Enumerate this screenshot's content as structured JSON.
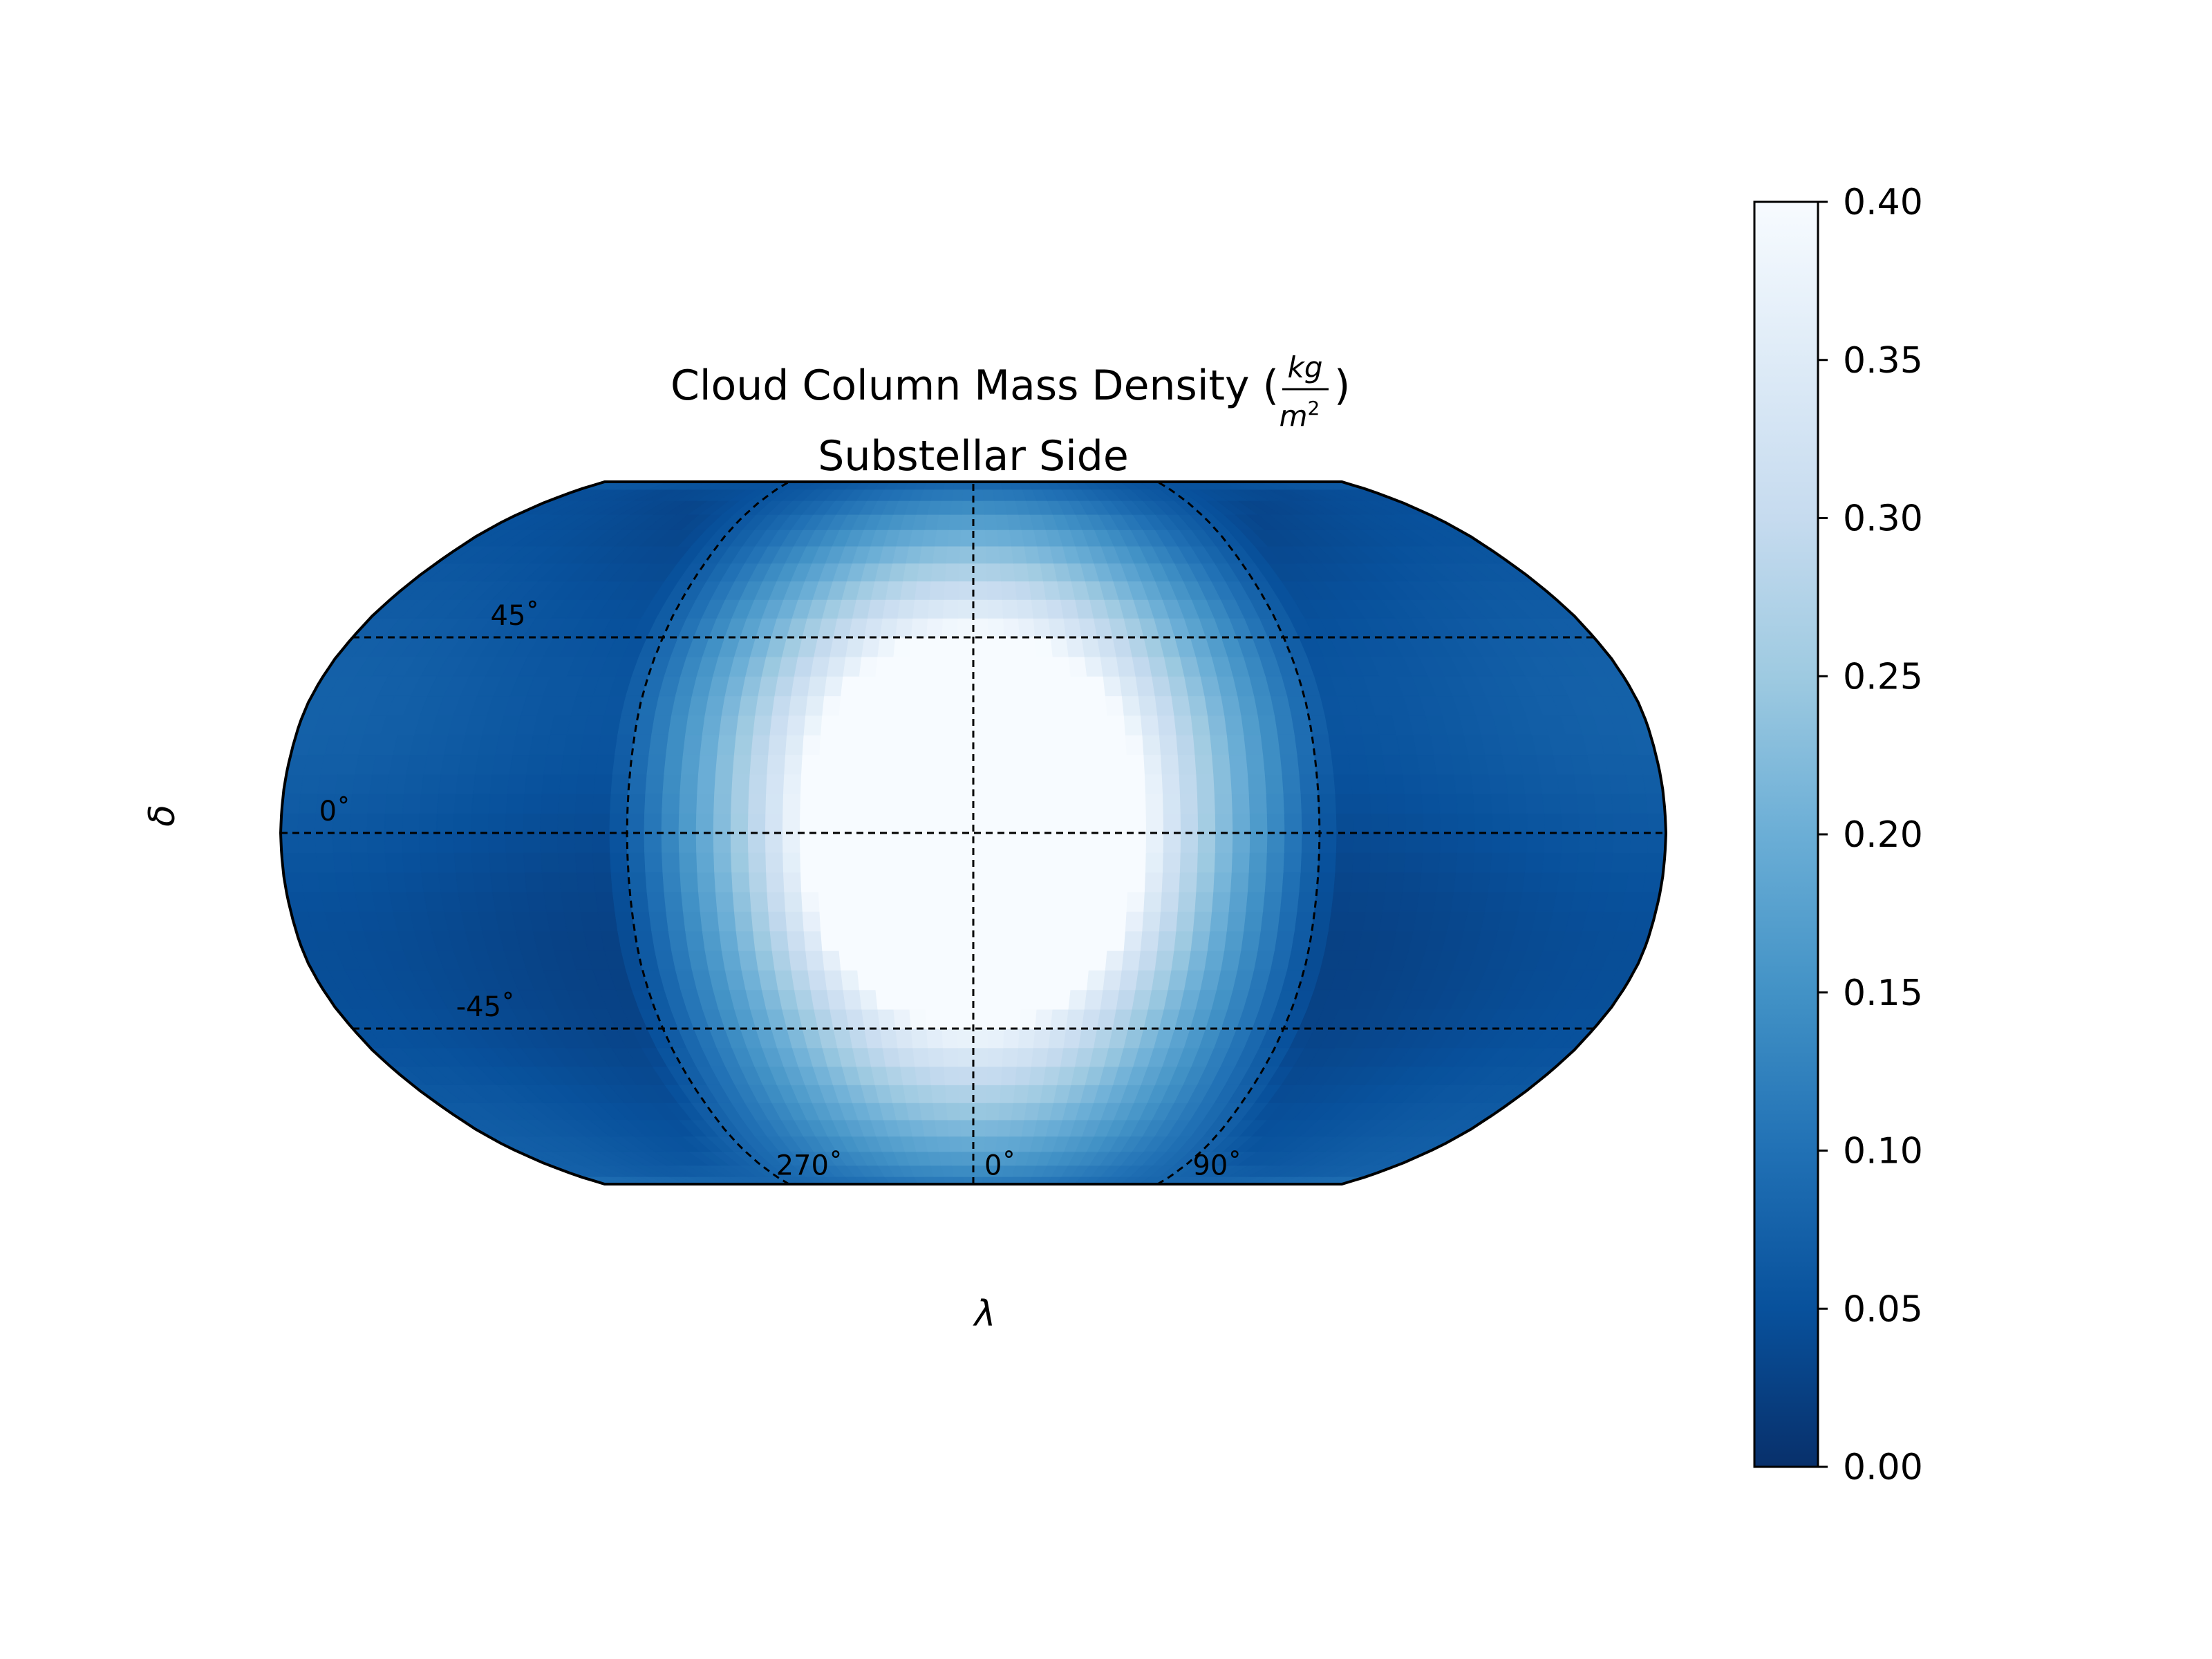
{
  "chart_data": {
    "type": "heatmap",
    "projection": "robinson",
    "view": "substellar",
    "title_main": "Cloud Column Mass Density (",
    "title_unit_num": "kg",
    "title_unit_den": "m",
    "title_unit_den_exp": "2",
    "title_close": ")",
    "subtitle": "Substellar Side",
    "xlabel": "λ",
    "ylabel": "δ",
    "colormap": "Blues_r",
    "colorbar": {
      "min": 0.0,
      "max": 0.4,
      "ticks": [
        "0.00",
        "0.05",
        "0.10",
        "0.15",
        "0.20",
        "0.25",
        "0.30",
        "0.35",
        "0.40"
      ],
      "colors": [
        "#08306b",
        "#08519c",
        "#2171b5",
        "#4292c6",
        "#6baed6",
        "#9ecae1",
        "#c6dbef",
        "#deebf7",
        "#f7fbff"
      ]
    },
    "grid": true,
    "lat_lines": [
      45,
      0,
      -45
    ],
    "lat_labels": [
      "45˚",
      "0˚",
      "-45˚"
    ],
    "lon_lines": [
      270,
      0,
      90
    ],
    "lon_labels": [
      "270˚",
      "0˚",
      "90˚"
    ],
    "field": {
      "lon_range": [
        -180,
        180
      ],
      "lat_range": [
        -90,
        90
      ],
      "substellar_lon": 0,
      "substellar_lat": 0,
      "peak_value": 0.4,
      "plateau_angular_radius_deg": 45,
      "falloff_edge_deg": 95,
      "nightside_value": 0.05,
      "resolution_deg": 4.5
    }
  }
}
